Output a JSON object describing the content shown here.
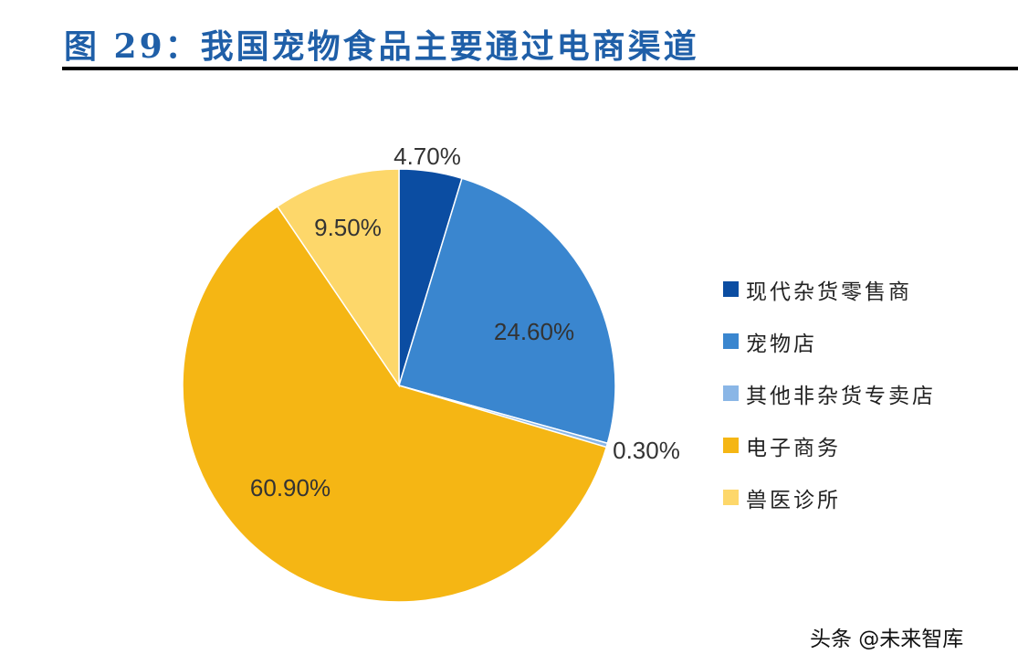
{
  "title": "图 29：我国宠物食品主要通过电商渠道",
  "watermark": "头条 @未来智库",
  "chart_data": {
    "type": "pie",
    "start": "12 o'clock, clockwise",
    "legend_position": "right",
    "slices": [
      {
        "name": "现代杂货零售商",
        "value": 4.7,
        "label": "4.70%",
        "color": "#0b4da2"
      },
      {
        "name": "宠物店",
        "value": 24.6,
        "label": "24.60%",
        "color": "#3a86cf"
      },
      {
        "name": "其他非杂货专卖店",
        "value": 0.3,
        "label": "0.30%",
        "color": "#8ab6e6"
      },
      {
        "name": "电子商务",
        "value": 60.9,
        "label": "60.90%",
        "color": "#f5b614"
      },
      {
        "name": "兽医诊所",
        "value": 9.5,
        "label": "9.50%",
        "color": "#fdd76a"
      }
    ]
  }
}
